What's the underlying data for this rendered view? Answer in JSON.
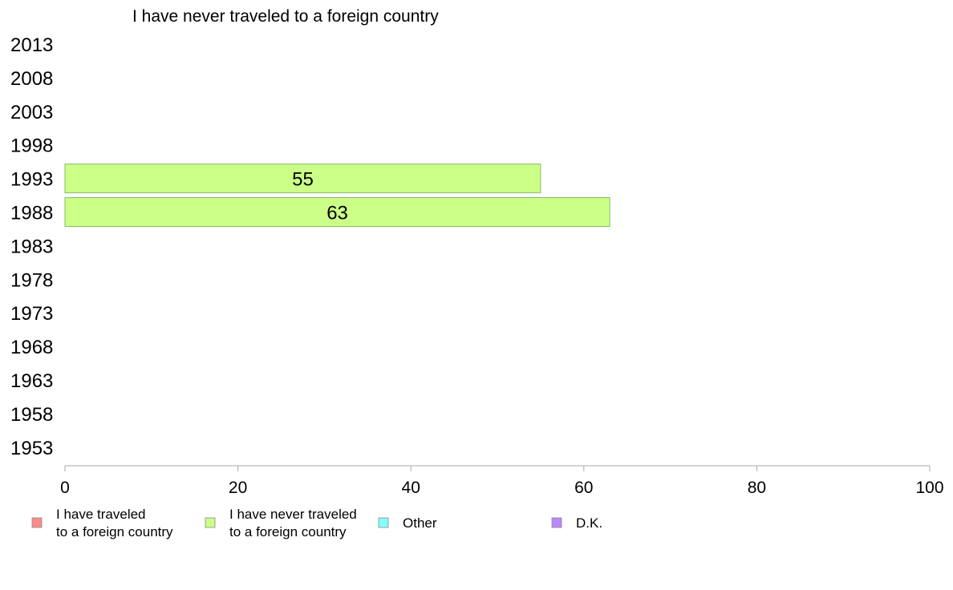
{
  "chart_data": {
    "type": "bar",
    "orientation": "horizontal",
    "title": "I have never traveled to a foreign country",
    "categories": [
      "2013",
      "2008",
      "2003",
      "1998",
      "1993",
      "1988",
      "1983",
      "1978",
      "1973",
      "1968",
      "1963",
      "1958",
      "1953"
    ],
    "series": [
      {
        "name": "I have never traveled to a foreign country",
        "color": "#ccff88",
        "values": [
          null,
          null,
          null,
          null,
          55,
          63,
          null,
          null,
          null,
          null,
          null,
          null,
          null
        ]
      }
    ],
    "xlim": [
      0,
      100
    ],
    "x_ticks": [
      0,
      20,
      40,
      60,
      80,
      100
    ],
    "grid": false,
    "legend_position": "bottom",
    "legend": [
      {
        "lines": [
          "I have traveled",
          "to a foreign country"
        ],
        "color": "#ff8a8a"
      },
      {
        "lines": [
          "I have never traveled",
          "to a foreign country"
        ],
        "color": "#ccff88"
      },
      {
        "lines": [
          "Other"
        ],
        "color": "#88ffff"
      },
      {
        "lines": [
          "D.K."
        ],
        "color": "#bb88ff"
      }
    ]
  }
}
